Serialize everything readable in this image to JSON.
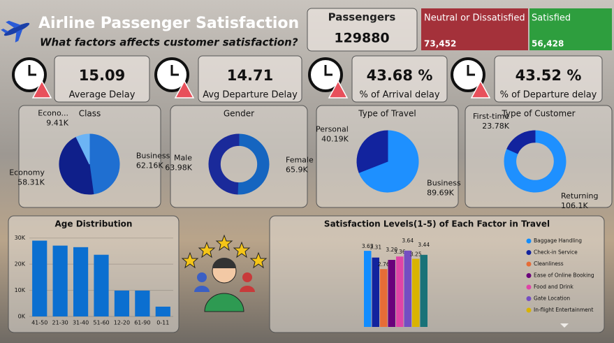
{
  "header": {
    "title": "Airline Passenger Satisfaction",
    "subtitle": "What factors affects customer satisfaction?"
  },
  "passengers": {
    "label": "Passengers",
    "value": "129880"
  },
  "satisfaction_cards": [
    {
      "label": "Neutral or Dissatisfied",
      "value": "73,452"
    },
    {
      "label": "Satisfied",
      "value": "56,428"
    }
  ],
  "kpis": [
    {
      "value": "15.09",
      "label": "Average Delay"
    },
    {
      "value": "14.71",
      "label": "Avg Departure Delay"
    },
    {
      "value": "43.68 %",
      "label": "% of Arrival delay"
    },
    {
      "value": "43.52 %",
      "label": "% of Departure delay"
    }
  ],
  "chart_data": [
    {
      "type": "pie",
      "title": "Class",
      "categories": [
        "Business",
        "Economy",
        "Econo..."
      ],
      "values": [
        62160,
        58310,
        9410
      ],
      "value_labels": [
        "62.16K",
        "58.31K",
        "9.41K"
      ],
      "colors": [
        "#1f6fd1",
        "#0f1f8a",
        "#6cb4f5"
      ]
    },
    {
      "type": "donut",
      "title": "Gender",
      "categories": [
        "Female",
        "Male"
      ],
      "values": [
        65900,
        63980
      ],
      "value_labels": [
        "65.9K",
        "63.98K"
      ],
      "colors": [
        "#1565c0",
        "#1a2a9a"
      ]
    },
    {
      "type": "pie",
      "title": "Type of Travel",
      "categories": [
        "Business",
        "Personal"
      ],
      "values": [
        89690,
        40190
      ],
      "value_labels": [
        "89.69K",
        "40.19K"
      ],
      "colors": [
        "#1e90ff",
        "#12239e"
      ]
    },
    {
      "type": "donut",
      "title": "Type of Customer",
      "categories": [
        "Returning",
        "First-time"
      ],
      "values": [
        106100,
        23780
      ],
      "value_labels": [
        "106.1K",
        "23.78K"
      ],
      "colors": [
        "#1e90ff",
        "#12239e"
      ]
    },
    {
      "type": "bar",
      "title": "Age Distribution",
      "categories": [
        "41-50",
        "21-30",
        "31-40",
        "51-60",
        "12-20",
        "61-90",
        "0-11"
      ],
      "values": [
        29000,
        27100,
        26500,
        23600,
        9900,
        9900,
        3750
      ],
      "color": "#0b6fd0",
      "ylim": [
        0,
        31000
      ],
      "yticks": [
        {
          "value": 0,
          "label": "0K"
        },
        {
          "value": 10000,
          "label": "10K"
        },
        {
          "value": 20000,
          "label": "20K"
        },
        {
          "value": 30000,
          "label": "30K"
        }
      ]
    },
    {
      "type": "grouped-bar",
      "title": "Satisfaction Levels(1-5) of Each Factor in Travel",
      "ylim": [
        0,
        4.2
      ],
      "series": [
        {
          "name": "Baggage Handling",
          "color": "#118dff",
          "values": [
            3.63
          ]
        },
        {
          "name": "Check-in Service",
          "color": "#12239e",
          "values": [
            3.31
          ]
        },
        {
          "name": "Cleanliness",
          "color": "#e66c37",
          "values": [
            2.76
          ]
        },
        {
          "name": "Ease of Online Booking",
          "color": "#6b007b",
          "values": [
            3.2
          ],
          "value_labels": [
            "3.20"
          ]
        },
        {
          "name": "Food and Drink",
          "color": "#e044a7",
          "values": [
            3.36
          ]
        },
        {
          "name": "Gate Location",
          "color": "#744ec2",
          "values": [
            3.64
          ]
        },
        {
          "name": "In-flight Entertainment",
          "color": "#d9b300",
          "values": [
            3.25
          ]
        },
        {
          "color": "#197278",
          "values": [
            3.44
          ]
        }
      ]
    }
  ]
}
